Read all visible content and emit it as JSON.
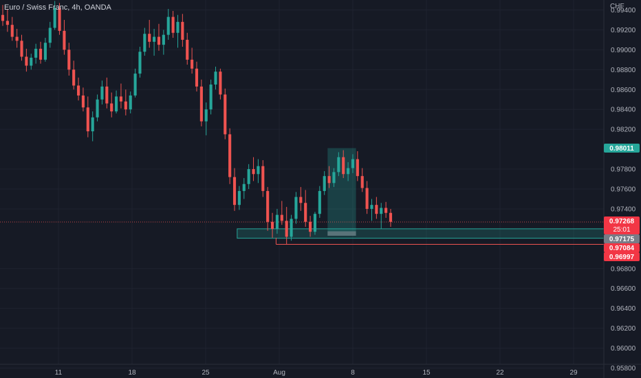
{
  "title": "Euro / Swiss Franc, 4h, OANDA",
  "currency": "CHF",
  "colors": {
    "background": "#161a25",
    "up": "#26a69a",
    "down": "#ef5350",
    "grid": "#1f2330"
  },
  "chart_data": {
    "type": "candlestick",
    "ylim": [
      0.957,
      0.995
    ],
    "y_ticks": [
      0.994,
      0.992,
      0.99,
      0.988,
      0.986,
      0.984,
      0.982,
      0.978,
      0.976,
      0.974,
      0.968,
      0.966,
      0.964,
      0.962,
      0.96,
      0.958
    ],
    "x_ticks": [
      {
        "label": "11",
        "day": 11
      },
      {
        "label": "18",
        "day": 18
      },
      {
        "label": "25",
        "day": 25
      },
      {
        "label": "Aug",
        "day": 32
      },
      {
        "label": "8",
        "day": 39
      },
      {
        "label": "15",
        "day": 46
      },
      {
        "label": "22",
        "day": 53
      },
      {
        "label": "29",
        "day": 60
      }
    ],
    "price_labels": [
      {
        "text": "0.98011",
        "value": 0.98011,
        "style": "up"
      },
      {
        "text": "0.97268",
        "sub": "25:01",
        "value": 0.97268,
        "style": "down"
      },
      {
        "text": "0.97175",
        "value": 0.97175,
        "style": "gray"
      },
      {
        "text": "0.97084",
        "value": 0.97084,
        "style": "down"
      },
      {
        "text": "0.96997",
        "value": 0.96997,
        "style": "down"
      }
    ],
    "support_zone": {
      "top": 0.972,
      "bottom": 0.97105,
      "from_day": 28.0
    },
    "position": {
      "from_day": 36.6,
      "to_day": 39.3,
      "entry": 0.9713,
      "target": 0.98011,
      "stop": 0.97175
    },
    "low_line": {
      "value": 0.97044,
      "from_day": 31.7
    },
    "series": [
      [
        0.9935,
        0.9945,
        0.9924,
        0.9929
      ],
      [
        0.9929,
        0.9941,
        0.9918,
        0.9925
      ],
      [
        0.9925,
        0.9933,
        0.9909,
        0.9913
      ],
      [
        0.9913,
        0.9921,
        0.9902,
        0.9909
      ],
      [
        0.9909,
        0.9915,
        0.9889,
        0.9893
      ],
      [
        0.9893,
        0.9901,
        0.9878,
        0.9884
      ],
      [
        0.9884,
        0.9896,
        0.988,
        0.9892
      ],
      [
        0.9892,
        0.9906,
        0.9886,
        0.9901
      ],
      [
        0.9901,
        0.9908,
        0.9886,
        0.989
      ],
      [
        0.989,
        0.9912,
        0.9888,
        0.9907
      ],
      [
        0.9907,
        0.9928,
        0.9902,
        0.9922
      ],
      [
        0.9922,
        0.9949,
        0.992,
        0.9942
      ],
      [
        0.9942,
        0.9947,
        0.9915,
        0.9919
      ],
      [
        0.9919,
        0.993,
        0.9895,
        0.99
      ],
      [
        0.99,
        0.9907,
        0.9874,
        0.988
      ],
      [
        0.988,
        0.9889,
        0.986,
        0.9864
      ],
      [
        0.9864,
        0.9872,
        0.9849,
        0.9854
      ],
      [
        0.9854,
        0.9862,
        0.9838,
        0.9842
      ],
      [
        0.9842,
        0.9853,
        0.9812,
        0.9818
      ],
      [
        0.9818,
        0.9838,
        0.9808,
        0.9832
      ],
      [
        0.9832,
        0.9855,
        0.9828,
        0.985
      ],
      [
        0.985,
        0.9869,
        0.9845,
        0.9863
      ],
      [
        0.9863,
        0.9872,
        0.9841,
        0.9846
      ],
      [
        0.9846,
        0.9857,
        0.9832,
        0.9838
      ],
      [
        0.9838,
        0.9859,
        0.9836,
        0.9853
      ],
      [
        0.9853,
        0.9866,
        0.9841,
        0.9848
      ],
      [
        0.9848,
        0.986,
        0.9834,
        0.984
      ],
      [
        0.984,
        0.9858,
        0.9836,
        0.9854
      ],
      [
        0.9854,
        0.9881,
        0.9852,
        0.9876
      ],
      [
        0.9876,
        0.9903,
        0.9872,
        0.9898
      ],
      [
        0.9898,
        0.9922,
        0.9894,
        0.9916
      ],
      [
        0.9916,
        0.993,
        0.9902,
        0.9908
      ],
      [
        0.9908,
        0.9921,
        0.9894,
        0.9913
      ],
      [
        0.9913,
        0.9926,
        0.9899,
        0.9905
      ],
      [
        0.9905,
        0.992,
        0.9895,
        0.9915
      ],
      [
        0.9915,
        0.9941,
        0.991,
        0.9933
      ],
      [
        0.9933,
        0.9939,
        0.9912,
        0.9917
      ],
      [
        0.9917,
        0.9935,
        0.9902,
        0.9928
      ],
      [
        0.9928,
        0.9936,
        0.9903,
        0.991
      ],
      [
        0.991,
        0.9917,
        0.9885,
        0.989
      ],
      [
        0.989,
        0.9902,
        0.9876,
        0.9881
      ],
      [
        0.9881,
        0.9888,
        0.9858,
        0.9863
      ],
      [
        0.9863,
        0.987,
        0.9823,
        0.9828
      ],
      [
        0.9828,
        0.9847,
        0.9814,
        0.984
      ],
      [
        0.984,
        0.987,
        0.9835,
        0.9865
      ],
      [
        0.9865,
        0.9883,
        0.986,
        0.9878
      ],
      [
        0.9878,
        0.9881,
        0.985,
        0.9855
      ],
      [
        0.9855,
        0.9861,
        0.981,
        0.9815
      ],
      [
        0.9815,
        0.9821,
        0.9765,
        0.9772
      ],
      [
        0.9772,
        0.9781,
        0.9738,
        0.9744
      ],
      [
        0.9744,
        0.9763,
        0.9739,
        0.9758
      ],
      [
        0.9758,
        0.9771,
        0.975,
        0.9765
      ],
      [
        0.9765,
        0.9785,
        0.976,
        0.978
      ],
      [
        0.978,
        0.9792,
        0.9768,
        0.9775
      ],
      [
        0.9775,
        0.979,
        0.9766,
        0.9783
      ],
      [
        0.9783,
        0.9789,
        0.9752,
        0.9758
      ],
      [
        0.9758,
        0.9762,
        0.9718,
        0.9727
      ],
      [
        0.9727,
        0.9736,
        0.9711,
        0.972
      ],
      [
        0.972,
        0.974,
        0.9715,
        0.9734
      ],
      [
        0.9734,
        0.9748,
        0.9724,
        0.9728
      ],
      [
        0.9728,
        0.9742,
        0.9704,
        0.9712
      ],
      [
        0.9712,
        0.9734,
        0.9708,
        0.973
      ],
      [
        0.973,
        0.9757,
        0.9725,
        0.9752
      ],
      [
        0.9752,
        0.9762,
        0.9738,
        0.9746
      ],
      [
        0.9746,
        0.9759,
        0.9722,
        0.9727
      ],
      [
        0.9727,
        0.9733,
        0.9712,
        0.9717
      ],
      [
        0.9717,
        0.9737,
        0.9714,
        0.9735
      ],
      [
        0.9735,
        0.9763,
        0.9731,
        0.9758
      ],
      [
        0.9758,
        0.9778,
        0.9754,
        0.9773
      ],
      [
        0.9773,
        0.9783,
        0.9761,
        0.9766
      ],
      [
        0.9766,
        0.9781,
        0.9762,
        0.9777
      ],
      [
        0.9777,
        0.9797,
        0.9773,
        0.9792
      ],
      [
        0.9792,
        0.9799,
        0.9771,
        0.9775
      ],
      [
        0.9775,
        0.9787,
        0.9768,
        0.9781
      ],
      [
        0.9781,
        0.9795,
        0.9776,
        0.979
      ],
      [
        0.979,
        0.9798,
        0.9768,
        0.9773
      ],
      [
        0.9773,
        0.9781,
        0.9757,
        0.9761
      ],
      [
        0.9761,
        0.9768,
        0.9735,
        0.974
      ],
      [
        0.974,
        0.975,
        0.9728,
        0.9744
      ],
      [
        0.9744,
        0.9752,
        0.973,
        0.9735
      ],
      [
        0.9735,
        0.9746,
        0.972,
        0.9741
      ],
      [
        0.9741,
        0.9747,
        0.9731,
        0.9736
      ],
      [
        0.9736,
        0.974,
        0.9722,
        0.9727
      ]
    ]
  }
}
